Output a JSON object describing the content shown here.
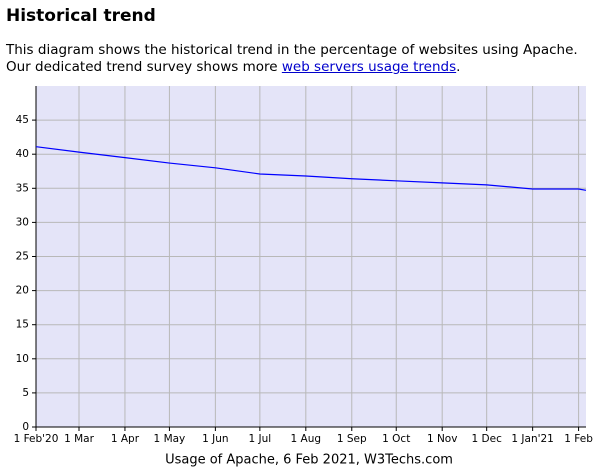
{
  "header": {
    "title": "Historical trend"
  },
  "paragraph": {
    "line1": "This diagram shows the historical trend in the percentage of websites using Apache.",
    "before": "Our dedicated trend survey shows more ",
    "link": "web servers usage trends",
    "after": "."
  },
  "chart_data": {
    "type": "line",
    "caption": "Usage of Apache, 6 Feb 2021, W3Techs.com",
    "x": [
      0,
      29,
      60,
      90,
      121,
      151,
      182,
      213,
      243,
      274,
      304,
      335,
      366,
      371
    ],
    "series": [
      {
        "name": "Apache",
        "color": "#0000ff",
        "values": [
          41.1,
          40.3,
          39.5,
          38.7,
          38.0,
          37.1,
          36.8,
          36.4,
          36.1,
          35.8,
          35.5,
          34.9,
          34.9,
          34.7
        ]
      }
    ],
    "xlim": [
      0,
      371
    ],
    "xticks": [
      {
        "value": 0,
        "label": "1 Feb'20"
      },
      {
        "value": 29,
        "label": "1 Mar"
      },
      {
        "value": 60,
        "label": "1 Apr"
      },
      {
        "value": 90,
        "label": "1 May"
      },
      {
        "value": 121,
        "label": "1 Jun"
      },
      {
        "value": 151,
        "label": "1 Jul"
      },
      {
        "value": 182,
        "label": "1 Aug"
      },
      {
        "value": 213,
        "label": "1 Sep"
      },
      {
        "value": 243,
        "label": "1 Oct"
      },
      {
        "value": 274,
        "label": "1 Nov"
      },
      {
        "value": 304,
        "label": "1 Dec"
      },
      {
        "value": 335,
        "label": "1 Jan'21"
      },
      {
        "value": 366,
        "label": "1 Feb"
      }
    ],
    "ylim": [
      0,
      50
    ],
    "yticks": [
      0,
      5,
      10,
      15,
      20,
      25,
      30,
      35,
      40,
      45
    ],
    "grid": true,
    "background": "#e4e4f8"
  }
}
